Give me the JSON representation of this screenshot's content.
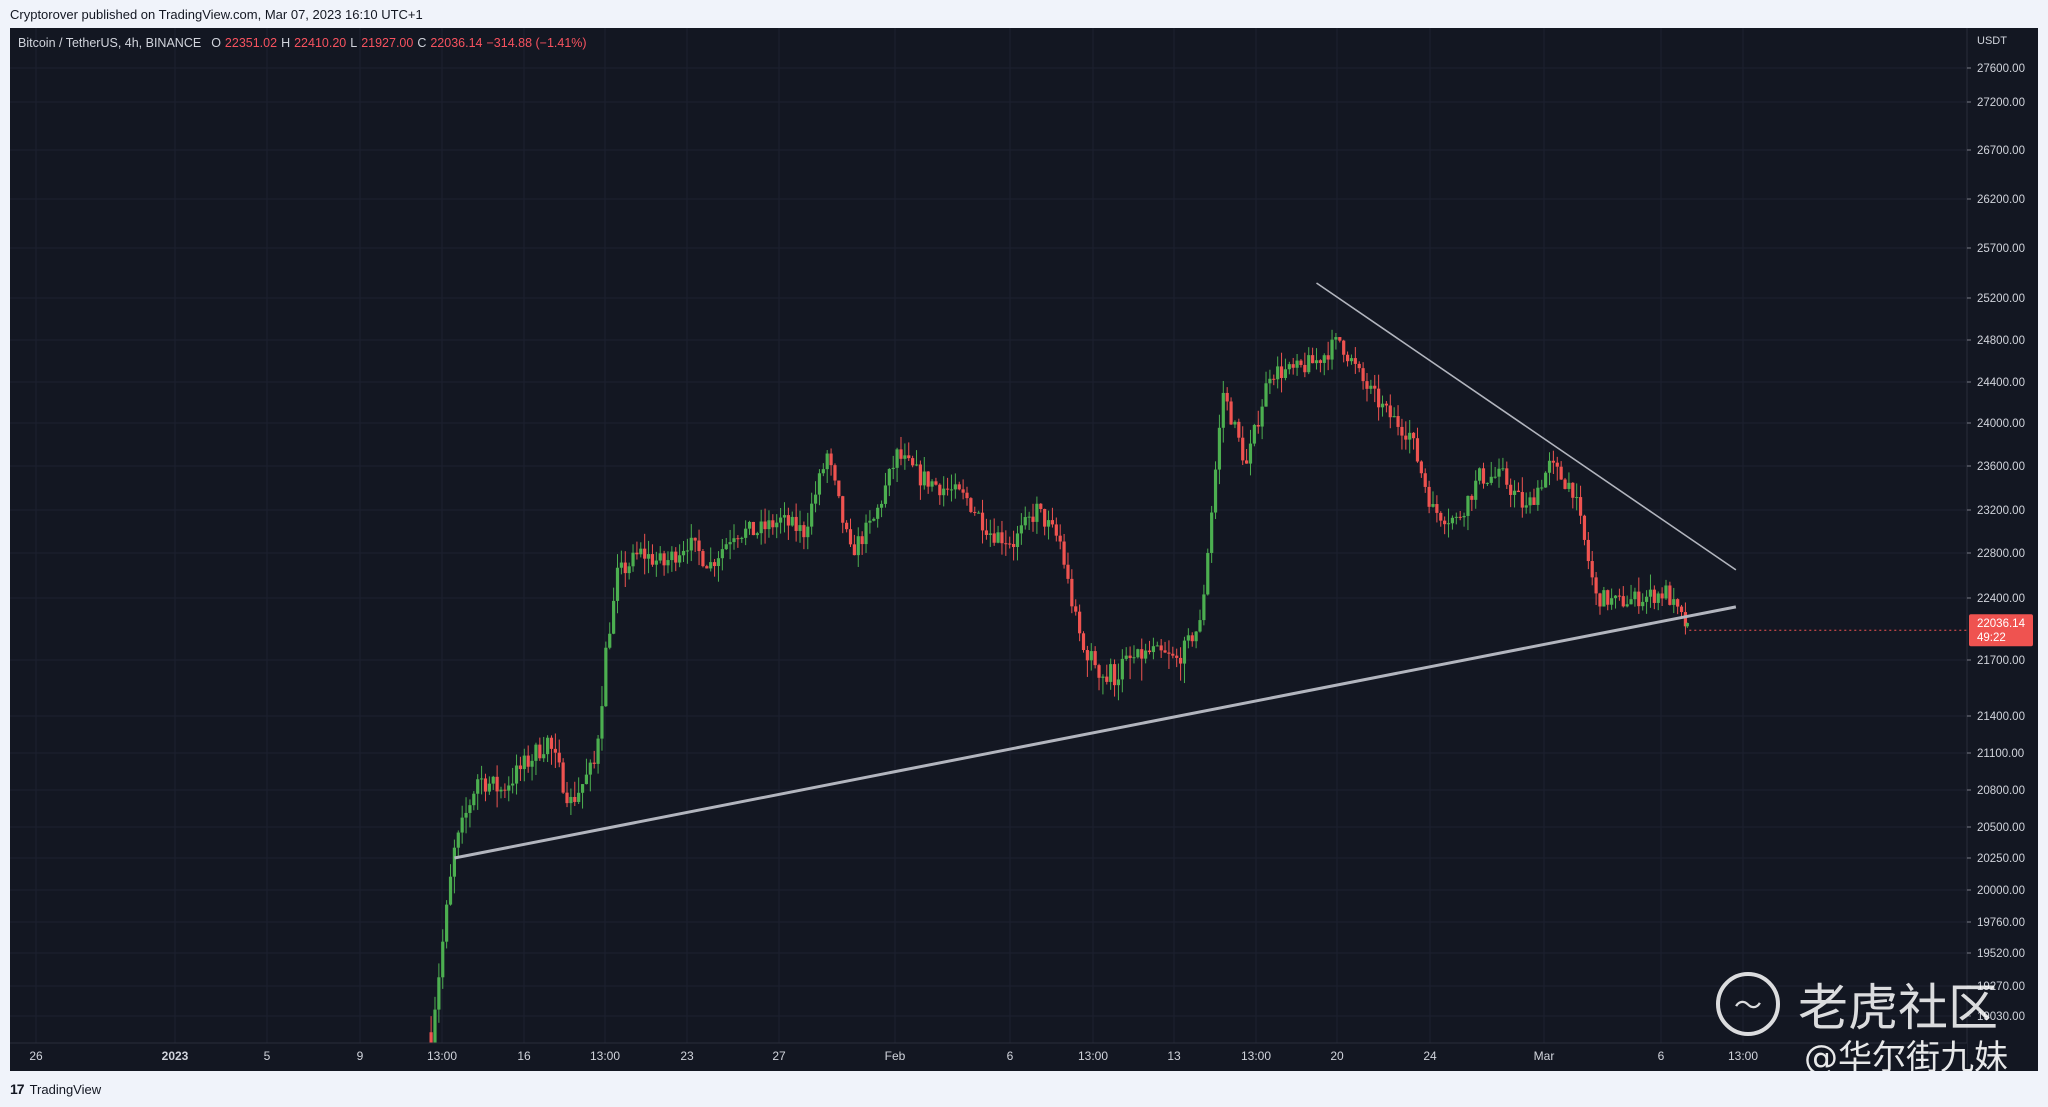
{
  "header": {
    "published": "Cryptorover published on TradingView.com, Mar 07, 2023 16:10 UTC+1"
  },
  "legend": {
    "symbol": "Bitcoin / TetherUS, 4h, BINANCE",
    "o_label": "O",
    "o_value": "22351.02",
    "h_label": "H",
    "h_value": "22410.20",
    "l_label": "L",
    "l_value": "21927.00",
    "c_label": "C",
    "c_value": "22036.14",
    "change": "−314.88 (−1.41%)"
  },
  "price_tag": {
    "price": "22036.14",
    "countdown": "49:22"
  },
  "footer": {
    "brand": "TradingView",
    "logo": "tradingview-logo-icon"
  },
  "watermark": {
    "site": "老虎社区",
    "author": "@华尔街九妹",
    "logo": "tiger-logo-icon"
  },
  "colors": {
    "up": "#26a69a",
    "up_bar": "#4caf50",
    "down": "#ef5350",
    "background": "#131722",
    "trendline": "#b2b5be"
  },
  "chart_data": {
    "type": "candlestick",
    "currency_label": "USDT",
    "y_ticks": [
      27600,
      27200,
      26700,
      26200,
      25700,
      25200,
      24800,
      24400,
      24000,
      23600,
      23200,
      22800,
      22400,
      21700,
      21400,
      21100,
      20800,
      20500,
      20250,
      20000,
      19760,
      19520,
      19270,
      19030
    ],
    "y_tick_labels": [
      "27600.00",
      "27200.00",
      "26700.00",
      "26200.00",
      "25700.00",
      "25200.00",
      "24800.00",
      "24400.00",
      "24000.00",
      "23600.00",
      "23200.00",
      "22800.00",
      "22400.00",
      "21700.00",
      "21400.00",
      "21100.00",
      "20800.00",
      "20500.00",
      "20250.00",
      "20000.00",
      "19760.00",
      "19520.00",
      "19270.00",
      "19030.00"
    ],
    "x_labels": [
      "26",
      "2023",
      "5",
      "9",
      "13:00",
      "16",
      "13:00",
      "23",
      "27",
      "Feb",
      "6",
      "13:00",
      "13",
      "13:00",
      "20",
      "24",
      "Mar",
      "6",
      "13:00"
    ],
    "x_label_bold": [
      false,
      true,
      false,
      false,
      false,
      false,
      false,
      false,
      false,
      false,
      false,
      false,
      false,
      false,
      false,
      false,
      false,
      false,
      false
    ],
    "close_path": [
      [
        "2023-01-12",
        18900
      ],
      [
        "2023-01-13",
        20300
      ],
      [
        "2023-01-14",
        20900
      ],
      [
        "2023-01-15",
        20800
      ],
      [
        "2023-01-16",
        21000
      ],
      [
        "2023-01-17",
        21200
      ],
      [
        "2023-01-18",
        20700
      ],
      [
        "2023-01-19",
        21000
      ],
      [
        "2023-01-20",
        22600
      ],
      [
        "2023-01-21",
        22800
      ],
      [
        "2023-01-22",
        22700
      ],
      [
        "2023-01-23",
        22900
      ],
      [
        "2023-01-24",
        22700
      ],
      [
        "2023-01-25",
        23000
      ],
      [
        "2023-01-26",
        23000
      ],
      [
        "2023-01-27",
        23100
      ],
      [
        "2023-01-28",
        23000
      ],
      [
        "2023-01-29",
        23700
      ],
      [
        "2023-01-30",
        22800
      ],
      [
        "2023-01-31",
        23100
      ],
      [
        "2023-02-01",
        23700
      ],
      [
        "2023-02-02",
        23500
      ],
      [
        "2023-02-03",
        23400
      ],
      [
        "2023-02-04",
        23300
      ],
      [
        "2023-02-05",
        23000
      ],
      [
        "2023-02-06",
        22900
      ],
      [
        "2023-02-07",
        23200
      ],
      [
        "2023-02-08",
        22900
      ],
      [
        "2023-02-09",
        21800
      ],
      [
        "2023-02-10",
        21600
      ],
      [
        "2023-02-11",
        21700
      ],
      [
        "2023-02-12",
        21800
      ],
      [
        "2023-02-13",
        21700
      ],
      [
        "2023-02-14",
        22100
      ],
      [
        "2023-02-15",
        24300
      ],
      [
        "2023-02-16",
        23600
      ],
      [
        "2023-02-17",
        24500
      ],
      [
        "2023-02-18",
        24500
      ],
      [
        "2023-02-19",
        24600
      ],
      [
        "2023-02-20",
        24800
      ],
      [
        "2023-02-21",
        24400
      ],
      [
        "2023-02-22",
        24100
      ],
      [
        "2023-02-23",
        23900
      ],
      [
        "2023-02-24",
        23200
      ],
      [
        "2023-02-25",
        23100
      ],
      [
        "2023-02-26",
        23500
      ],
      [
        "2023-02-27",
        23500
      ],
      [
        "2023-02-28",
        23200
      ],
      [
        "2023-03-01",
        23600
      ],
      [
        "2023-03-02",
        23400
      ],
      [
        "2023-03-03",
        22400
      ],
      [
        "2023-03-04",
        22350
      ],
      [
        "2023-03-05",
        22400
      ],
      [
        "2023-03-06",
        22450
      ],
      [
        "2023-03-07",
        22036
      ]
    ],
    "trendlines": [
      {
        "from": [
          "2023-01-13",
          20250
        ],
        "to": [
          "2023-03-09",
          22300
        ]
      },
      {
        "from": [
          "2023-02-19",
          25350
        ],
        "to": [
          "2023-03-09",
          22650
        ]
      }
    ]
  }
}
